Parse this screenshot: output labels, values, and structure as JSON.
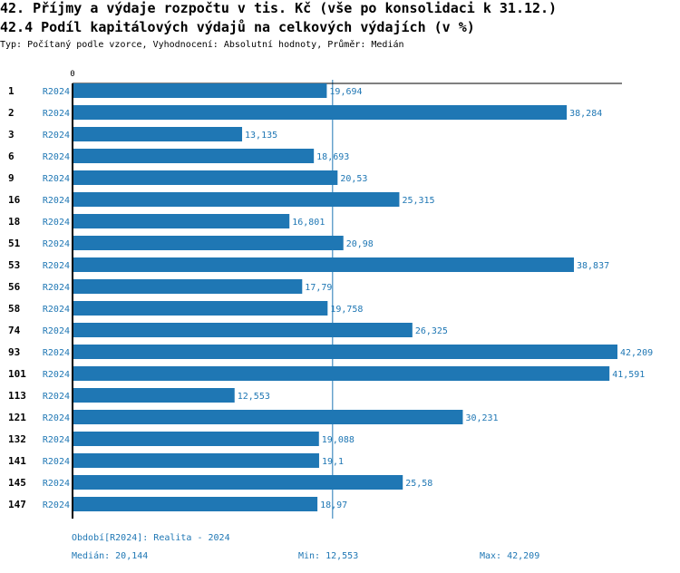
{
  "title": "42. Příjmy a výdaje rozpočtu v tis. Kč (vše po konsolidaci k 31.12.)",
  "subtitle": "42.4 Podíl kapitálových výdajů na celkových výdajích (v %)",
  "info": "Typ: Počítaný podle vzorce, Vyhodnocení: Absolutní hodnoty, Průměr: Medián",
  "colors": {
    "bar": "#1f77b4",
    "label": "#1f77b4",
    "axis": "#000000"
  },
  "chart_data": {
    "type": "bar",
    "orientation": "horizontal",
    "axis_zero_label": "0",
    "xlim": [
      0,
      42.209
    ],
    "categories": [
      "1",
      "2",
      "3",
      "6",
      "9",
      "16",
      "18",
      "51",
      "53",
      "56",
      "58",
      "74",
      "93",
      "101",
      "113",
      "121",
      "132",
      "141",
      "145",
      "147"
    ],
    "series_label": "R2024",
    "values": [
      19.694,
      38.284,
      13.135,
      18.693,
      20.53,
      25.315,
      16.801,
      20.98,
      38.837,
      17.79,
      19.758,
      26.325,
      42.209,
      41.591,
      12.553,
      30.231,
      19.088,
      19.1,
      25.58,
      18.97
    ],
    "value_labels": [
      "19,694",
      "38,284",
      "13,135",
      "18,693",
      "20,53",
      "25,315",
      "16,801",
      "20,98",
      "38,837",
      "17,79",
      "19,758",
      "26,325",
      "42,209",
      "41,591",
      "12,553",
      "30,231",
      "19,088",
      "19,1",
      "25,58",
      "18,97"
    ],
    "median": 20.144
  },
  "footer": {
    "period": "Období[R2024]: Realita - 2024",
    "median": "Medián: 20,144",
    "min": "Min: 12,553",
    "max": "Max: 42,209"
  }
}
